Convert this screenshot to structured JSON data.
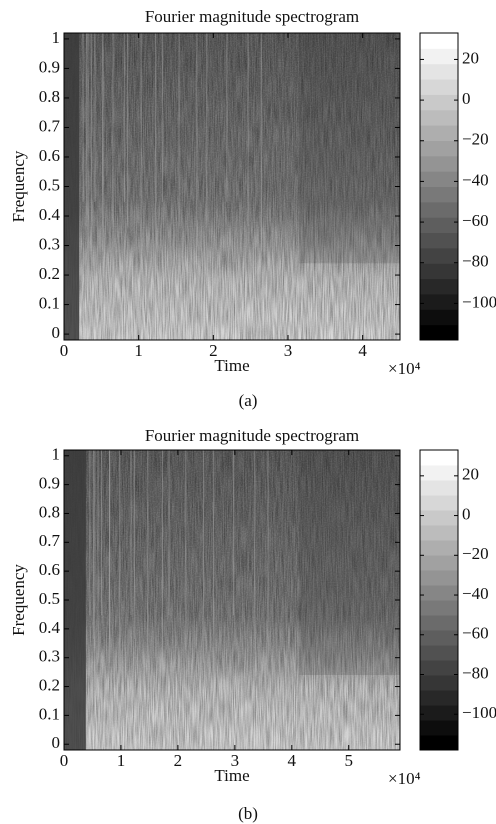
{
  "chart_data": [
    {
      "type": "spectrogram",
      "title": "Fourier magnitude spectrogram",
      "x_label": "Time",
      "y_label": "Frequency",
      "x_multiplier": "×10⁴",
      "caption": "(a)",
      "colormap": "gray",
      "xlim": [
        0,
        45000
      ],
      "xticks": [
        0,
        {
          "value": 10000,
          "label": "1"
        },
        {
          "value": 20000,
          "label": "2"
        },
        {
          "value": 30000,
          "label": "3"
        },
        {
          "value": 40000,
          "label": "4"
        }
      ],
      "ylim": [
        -0.02,
        1.02
      ],
      "yticks": [
        0,
        0.1,
        0.2,
        0.3,
        0.4,
        0.5,
        0.6,
        0.7,
        0.8,
        0.9,
        1
      ],
      "clim": [
        -118,
        33
      ],
      "cticks": [
        {
          "value": -100,
          "label": "−100"
        },
        {
          "value": -80,
          "label": "−80"
        },
        {
          "value": -60,
          "label": "−60"
        },
        {
          "value": -40,
          "label": "−40"
        },
        {
          "value": -20,
          "label": "−20"
        },
        0,
        20
      ]
    },
    {
      "type": "spectrogram",
      "title": "Fourier magnitude spectrogram",
      "x_label": "Time",
      "y_label": "Frequency",
      "x_multiplier": "×10⁴",
      "caption": "(b)",
      "colormap": "gray",
      "xlim": [
        0,
        59000
      ],
      "xticks": [
        0,
        {
          "value": 10000,
          "label": "1"
        },
        {
          "value": 20000,
          "label": "2"
        },
        {
          "value": 30000,
          "label": "3"
        },
        {
          "value": 40000,
          "label": "4"
        },
        {
          "value": 50000,
          "label": "5"
        }
      ],
      "ylim": [
        -0.02,
        1.02
      ],
      "yticks": [
        0,
        0.1,
        0.2,
        0.3,
        0.4,
        0.5,
        0.6,
        0.7,
        0.8,
        0.9,
        1
      ],
      "clim": [
        -118,
        33
      ],
      "cticks": [
        {
          "value": -100,
          "label": "−100"
        },
        {
          "value": -80,
          "label": "−80"
        },
        {
          "value": -60,
          "label": "−60"
        },
        {
          "value": -40,
          "label": "−40"
        },
        {
          "value": -20,
          "label": "−20"
        },
        0,
        20
      ]
    }
  ]
}
